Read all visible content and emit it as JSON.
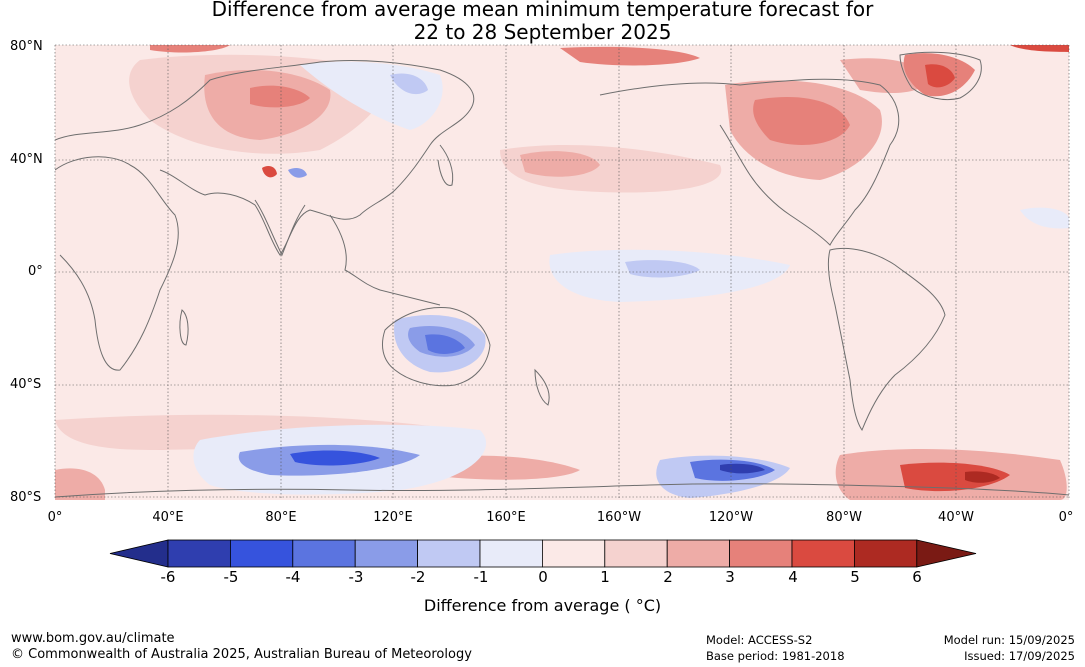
{
  "title_line1": "Difference from average mean minimum temperature forecast for",
  "title_line2": "22 to 28 September 2025",
  "lat_labels": [
    "80°N",
    "40°N",
    "0°",
    "40°S",
    "80°S"
  ],
  "lon_labels": [
    "0°",
    "40°E",
    "80°E",
    "120°E",
    "160°E",
    "160°W",
    "120°W",
    "80°W",
    "40°W",
    "0°"
  ],
  "colorbar": {
    "ticks": [
      "-6",
      "-5",
      "-4",
      "-3",
      "-2",
      "-1",
      "0",
      "1",
      "2",
      "3",
      "4",
      "5",
      "6"
    ],
    "colors": [
      "#232e8c",
      "#2f3eaf",
      "#3653dd",
      "#5b74e0",
      "#8a9ce8",
      "#c0c9f3",
      "#e8ebf9",
      "#fbe9e7",
      "#f5d2cf",
      "#eeaca7",
      "#e6817a",
      "#da4a40",
      "#ad2a22",
      "#7a1a14"
    ],
    "label": "Difference from average ( °C)"
  },
  "footer": {
    "url": "www.bom.gov.au/climate",
    "copyright": "© Commonwealth of Australia 2025, Australian Bureau of Meteorology",
    "model": "Model: ACCESS-S2",
    "base_period": "Base period: 1981-2018",
    "model_run": "Model run: 15/09/2025",
    "issued": "Issued: 17/09/2025"
  },
  "colors": {
    "ocean_base": "#fbe9e7",
    "land_outline": "#6e6e6e",
    "grid": "#555555"
  }
}
